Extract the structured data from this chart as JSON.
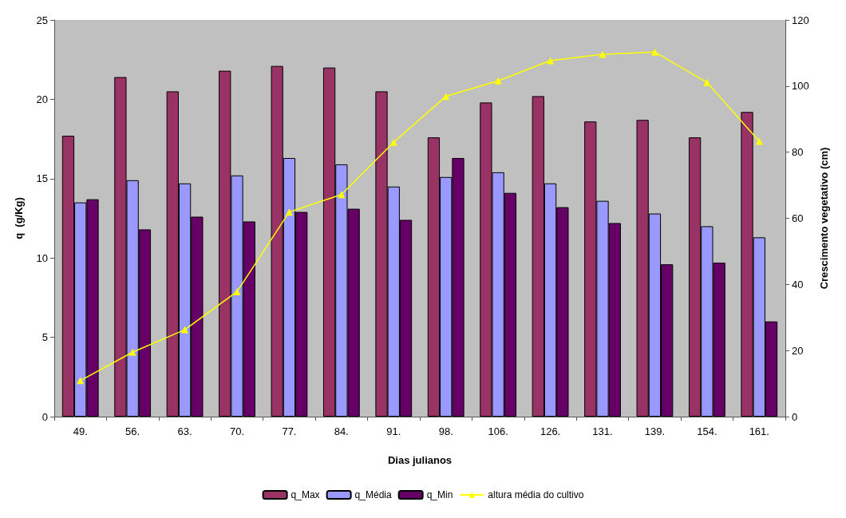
{
  "chart_data": {
    "type": "bar",
    "xlabel": "Dias julianos",
    "ylabel": "q  (g/Kg)",
    "y2label": "Crescimento vegetativo (cm)",
    "categories": [
      "49.",
      "56.",
      "63.",
      "70.",
      "77.",
      "84.",
      "91.",
      "98.",
      "106.",
      "126.",
      "131.",
      "139.",
      "154.",
      "161."
    ],
    "series": [
      {
        "name": "q_Max",
        "color": "#993366",
        "values": [
          17.7,
          21.4,
          20.5,
          21.8,
          22.1,
          22.0,
          20.5,
          17.6,
          19.8,
          20.2,
          18.6,
          18.7,
          17.6,
          19.2
        ]
      },
      {
        "name": "q_Média",
        "color": "#9999ff",
        "values": [
          13.5,
          14.9,
          14.7,
          15.2,
          16.3,
          15.9,
          14.5,
          15.1,
          15.4,
          14.7,
          13.6,
          12.8,
          12.0,
          11.3
        ]
      },
      {
        "name": "q_Min",
        "color": "#660066",
        "values": [
          13.7,
          11.8,
          12.6,
          12.3,
          12.9,
          13.1,
          12.4,
          16.3,
          14.1,
          13.2,
          12.2,
          9.6,
          9.7,
          6.0
        ]
      },
      {
        "name": "altura média do cultivo",
        "type": "line",
        "axis": "y2",
        "color": "#ffff00",
        "marker": "triangle",
        "values": [
          10.9,
          19.5,
          26.3,
          37.8,
          61.9,
          67.2,
          83.0,
          96.9,
          101.6,
          107.7,
          109.6,
          110.3,
          101.1,
          83.3
        ]
      }
    ],
    "ylim": [
      0,
      25
    ],
    "yticks": [
      0,
      5,
      10,
      15,
      20,
      25
    ],
    "y2lim": [
      0,
      120
    ],
    "y2ticks": [
      0,
      20,
      40,
      60,
      80,
      100,
      120
    ],
    "grid": false,
    "legend": "bottom"
  }
}
